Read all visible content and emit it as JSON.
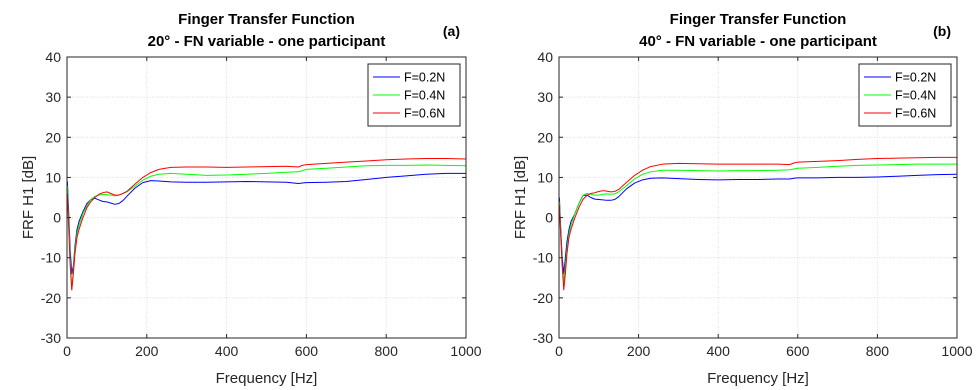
{
  "chart_data": [
    {
      "type": "line",
      "title": [
        "Finger Transfer Function",
        "20° - FN variable - one participant"
      ],
      "panel_label": "(a)",
      "xlabel": "Frequency [Hz]",
      "ylabel": "FRF H1 [dB]",
      "xlim": [
        0,
        1000
      ],
      "ylim": [
        -30,
        40
      ],
      "xticks": [
        0,
        200,
        400,
        600,
        800,
        1000
      ],
      "yticks": [
        -30,
        -20,
        -10,
        0,
        10,
        20,
        30,
        40
      ],
      "grid": true,
      "legend_position": "top-right",
      "series": [
        {
          "name": "F=0.2N",
          "color": "#0000ff",
          "x": [
            1,
            4,
            8,
            12,
            16,
            20,
            25,
            30,
            40,
            50,
            60,
            70,
            80,
            90,
            100,
            110,
            120,
            130,
            140,
            150,
            170,
            190,
            210,
            230,
            260,
            300,
            350,
            400,
            450,
            500,
            550,
            580,
            590,
            600,
            650,
            700,
            750,
            800,
            850,
            900,
            950,
            1000
          ],
          "y": [
            9,
            2,
            -8,
            -14,
            -12,
            -7,
            -3,
            -1,
            1.5,
            3.5,
            4.5,
            4.8,
            4.4,
            4.0,
            3.9,
            3.6,
            3.3,
            3.5,
            4.2,
            5.3,
            7.3,
            8.7,
            9.2,
            9.1,
            8.9,
            8.8,
            8.8,
            8.9,
            9.0,
            8.9,
            8.8,
            8.5,
            8.6,
            8.7,
            8.8,
            9.0,
            9.5,
            10.0,
            10.4,
            10.8,
            11.0,
            11.0
          ]
        },
        {
          "name": "F=0.4N",
          "color": "#00ff00",
          "x": [
            1,
            4,
            8,
            12,
            16,
            20,
            25,
            30,
            40,
            50,
            60,
            70,
            80,
            90,
            100,
            110,
            120,
            130,
            140,
            150,
            170,
            190,
            210,
            230,
            260,
            300,
            350,
            400,
            450,
            500,
            550,
            580,
            590,
            600,
            650,
            700,
            750,
            800,
            850,
            900,
            950,
            1000
          ],
          "y": [
            8,
            0,
            -10,
            -18,
            -13,
            -8,
            -4,
            -2,
            1,
            3.0,
            4.5,
            5.3,
            5.6,
            5.8,
            5.7,
            5.6,
            5.4,
            5.6,
            6.0,
            6.4,
            7.8,
            9.3,
            10.3,
            10.8,
            11.0,
            10.8,
            10.5,
            10.6,
            10.8,
            11.0,
            11.3,
            11.4,
            11.7,
            12.0,
            12.3,
            12.6,
            12.9,
            13.0,
            13.0,
            13.1,
            13.0,
            12.9
          ]
        },
        {
          "name": "F=0.6N",
          "color": "#ff0000",
          "x": [
            1,
            4,
            8,
            12,
            16,
            20,
            25,
            30,
            40,
            50,
            60,
            70,
            80,
            90,
            100,
            110,
            120,
            130,
            140,
            150,
            170,
            190,
            210,
            230,
            260,
            300,
            350,
            400,
            450,
            500,
            550,
            580,
            590,
            600,
            650,
            700,
            750,
            800,
            850,
            900,
            950,
            1000
          ],
          "y": [
            6,
            -2,
            -12,
            -18,
            -14,
            -9,
            -5,
            -3,
            0,
            2.5,
            4.0,
            5.0,
            5.8,
            6.2,
            6.4,
            6.0,
            5.6,
            5.6,
            6.0,
            6.5,
            8.3,
            10.0,
            11.2,
            12.0,
            12.5,
            12.6,
            12.6,
            12.5,
            12.6,
            12.7,
            12.8,
            12.6,
            13.0,
            13.2,
            13.5,
            13.8,
            14.1,
            14.4,
            14.6,
            14.7,
            14.7,
            14.6
          ]
        }
      ]
    },
    {
      "type": "line",
      "title": [
        "Finger Transfer Function",
        "40° - FN variable - one participant"
      ],
      "panel_label": "(b)",
      "xlabel": "Frequency [Hz]",
      "ylabel": "FRF H1 [dB]",
      "xlim": [
        0,
        1000
      ],
      "ylim": [
        -30,
        40
      ],
      "xticks": [
        0,
        200,
        400,
        600,
        800,
        1000
      ],
      "yticks": [
        -30,
        -20,
        -10,
        0,
        10,
        20,
        30,
        40
      ],
      "grid": true,
      "legend_position": "top-right",
      "series": [
        {
          "name": "F=0.2N",
          "color": "#0000ff",
          "x": [
            1,
            4,
            8,
            12,
            16,
            20,
            25,
            30,
            40,
            50,
            60,
            70,
            80,
            90,
            100,
            110,
            120,
            130,
            140,
            150,
            170,
            190,
            210,
            230,
            260,
            300,
            350,
            400,
            450,
            500,
            550,
            580,
            590,
            600,
            650,
            700,
            750,
            800,
            850,
            900,
            950,
            1000
          ],
          "y": [
            5,
            -2,
            -10,
            -14,
            -10,
            -6,
            -3,
            -1,
            1,
            3.5,
            5.5,
            5.6,
            5.0,
            4.6,
            4.5,
            4.4,
            4.3,
            4.3,
            4.5,
            5.2,
            7.2,
            8.6,
            9.4,
            9.8,
            9.9,
            9.7,
            9.5,
            9.4,
            9.5,
            9.5,
            9.6,
            9.6,
            9.8,
            9.9,
            9.9,
            10.0,
            10.0,
            10.1,
            10.3,
            10.5,
            10.7,
            10.8
          ]
        },
        {
          "name": "F=0.4N",
          "color": "#00ff00",
          "x": [
            1,
            4,
            8,
            12,
            16,
            20,
            25,
            30,
            40,
            50,
            60,
            70,
            80,
            90,
            100,
            110,
            120,
            130,
            140,
            150,
            170,
            190,
            210,
            230,
            260,
            300,
            350,
            400,
            450,
            500,
            550,
            580,
            590,
            600,
            650,
            700,
            750,
            800,
            850,
            900,
            950,
            1000
          ],
          "y": [
            4,
            -3,
            -12,
            -16,
            -12,
            -8,
            -4,
            -2,
            1,
            3.5,
            5.5,
            6.0,
            5.8,
            5.6,
            5.6,
            5.8,
            5.9,
            5.8,
            5.9,
            6.4,
            8.0,
            9.6,
            10.8,
            11.4,
            11.8,
            11.8,
            11.7,
            11.6,
            11.7,
            11.7,
            11.8,
            11.9,
            12.1,
            12.3,
            12.5,
            12.8,
            13.0,
            13.1,
            13.2,
            13.3,
            13.3,
            13.3
          ]
        },
        {
          "name": "F=0.6N",
          "color": "#ff0000",
          "x": [
            1,
            4,
            8,
            12,
            16,
            20,
            25,
            30,
            40,
            50,
            60,
            70,
            80,
            90,
            100,
            110,
            120,
            130,
            140,
            150,
            170,
            190,
            210,
            230,
            260,
            300,
            350,
            400,
            450,
            500,
            550,
            580,
            590,
            600,
            650,
            700,
            750,
            800,
            850,
            900,
            950,
            1000
          ],
          "y": [
            3,
            -4,
            -12,
            -18,
            -14,
            -9,
            -5,
            -3,
            0,
            2.5,
            4.5,
            5.5,
            6.0,
            6.2,
            6.5,
            6.7,
            6.6,
            6.4,
            6.5,
            7.0,
            8.8,
            10.5,
            11.8,
            12.7,
            13.3,
            13.5,
            13.4,
            13.3,
            13.3,
            13.3,
            13.3,
            13.2,
            13.6,
            13.8,
            14.0,
            14.2,
            14.5,
            14.7,
            14.8,
            14.9,
            15.0,
            15.0
          ]
        }
      ]
    }
  ]
}
